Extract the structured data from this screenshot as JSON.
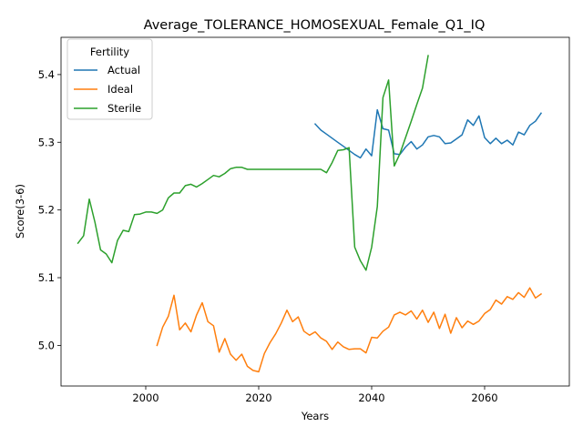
{
  "chart_data": {
    "type": "line",
    "title": "Average_TOLERANCE_HOMOSEXUAL_Female_Q1_IQ",
    "xlabel": "Years",
    "ylabel": "Score(3-6)",
    "xlim": [
      1985,
      2075
    ],
    "ylim": [
      4.94,
      5.455
    ],
    "xticks": [
      2000,
      2020,
      2040,
      2060
    ],
    "yticks": [
      5.0,
      5.1,
      5.2,
      5.3,
      5.4
    ],
    "ytick_labels": [
      "5.0",
      "5.1",
      "5.2",
      "5.3",
      "5.4"
    ],
    "grid": false,
    "legend": {
      "title": "Fertility",
      "position": "upper-left"
    },
    "series": [
      {
        "name": "Actual",
        "color": "#1f77b4",
        "x": [
          2030,
          2031,
          2032,
          2033,
          2034,
          2035,
          2036,
          2037,
          2038,
          2039,
          2040,
          2041,
          2042,
          2043,
          2044,
          2045,
          2046,
          2047,
          2048,
          2049,
          2050,
          2051,
          2052,
          2053,
          2054,
          2055,
          2056,
          2057,
          2058,
          2059,
          2060,
          2061,
          2062,
          2063,
          2064,
          2065,
          2066,
          2067,
          2068,
          2069,
          2070
        ],
        "y": [
          5.327,
          5.318,
          5.312,
          5.306,
          5.3,
          5.294,
          5.288,
          5.282,
          5.277,
          5.29,
          5.28,
          5.348,
          5.32,
          5.318,
          5.283,
          5.282,
          5.293,
          5.301,
          5.29,
          5.296,
          5.308,
          5.31,
          5.308,
          5.298,
          5.299,
          5.305,
          5.311,
          5.333,
          5.325,
          5.339,
          5.307,
          5.298,
          5.306,
          5.298,
          5.303,
          5.296,
          5.315,
          5.311,
          5.325,
          5.331,
          5.343
        ]
      },
      {
        "name": "Ideal",
        "color": "#ff7f0e",
        "x": [
          2002,
          2003,
          2004,
          2005,
          2006,
          2007,
          2008,
          2009,
          2010,
          2011,
          2012,
          2013,
          2014,
          2015,
          2016,
          2017,
          2018,
          2019,
          2020,
          2021,
          2022,
          2023,
          2024,
          2025,
          2026,
          2027,
          2028,
          2029,
          2030,
          2031,
          2032,
          2033,
          2034,
          2035,
          2036,
          2037,
          2038,
          2039,
          2040,
          2041,
          2042,
          2043,
          2044,
          2045,
          2046,
          2047,
          2048,
          2049,
          2050,
          2051,
          2052,
          2053,
          2054,
          2055,
          2056,
          2057,
          2058,
          2059,
          2060,
          2061,
          2062,
          2063,
          2064,
          2065,
          2066,
          2067,
          2068,
          2069,
          2070
        ],
        "y": [
          5.0,
          5.027,
          5.043,
          5.074,
          5.023,
          5.033,
          5.02,
          5.045,
          5.063,
          5.035,
          5.029,
          4.99,
          5.01,
          4.987,
          4.978,
          4.987,
          4.969,
          4.963,
          4.961,
          4.988,
          5.004,
          5.017,
          5.033,
          5.052,
          5.035,
          5.042,
          5.021,
          5.015,
          5.02,
          5.011,
          5.006,
          4.994,
          5.005,
          4.998,
          4.994,
          4.995,
          4.995,
          4.989,
          5.012,
          5.011,
          5.021,
          5.027,
          5.045,
          5.049,
          5.045,
          5.051,
          5.039,
          5.052,
          5.034,
          5.049,
          5.025,
          5.046,
          5.018,
          5.041,
          5.026,
          5.036,
          5.031,
          5.036,
          5.047,
          5.053,
          5.067,
          5.061,
          5.072,
          5.068,
          5.078,
          5.071,
          5.085,
          5.07,
          5.076
        ]
      },
      {
        "name": "Sterile",
        "color": "#2ca02c",
        "x": [
          1988,
          1989,
          1990,
          1991,
          1992,
          1993,
          1994,
          1995,
          1996,
          1997,
          1998,
          1999,
          2000,
          2001,
          2002,
          2003,
          2004,
          2005,
          2006,
          2007,
          2008,
          2009,
          2010,
          2011,
          2012,
          2013,
          2014,
          2015,
          2016,
          2017,
          2018,
          2019,
          2020,
          2021,
          2022,
          2023,
          2024,
          2025,
          2026,
          2027,
          2028,
          2029,
          2030,
          2031,
          2032,
          2033,
          2034,
          2035,
          2036,
          2037,
          2038,
          2039,
          2040,
          2041,
          2042,
          2043,
          2044,
          2045,
          2046,
          2047,
          2048,
          2049,
          2050
        ],
        "y": [
          5.151,
          5.162,
          5.216,
          5.182,
          5.141,
          5.135,
          5.122,
          5.155,
          5.17,
          5.168,
          5.193,
          5.194,
          5.197,
          5.197,
          5.195,
          5.2,
          5.218,
          5.225,
          5.225,
          5.236,
          5.238,
          5.234,
          5.239,
          5.245,
          5.251,
          5.249,
          5.254,
          5.261,
          5.263,
          5.263,
          5.26,
          5.26,
          5.26,
          5.26,
          5.26,
          5.26,
          5.26,
          5.26,
          5.26,
          5.26,
          5.26,
          5.26,
          5.26,
          5.26,
          5.255,
          5.27,
          5.288,
          5.289,
          5.292,
          5.145,
          5.125,
          5.111,
          5.145,
          5.205,
          5.366,
          5.392,
          5.265,
          5.283,
          5.307,
          5.331,
          5.356,
          5.38,
          5.428
        ]
      }
    ]
  }
}
